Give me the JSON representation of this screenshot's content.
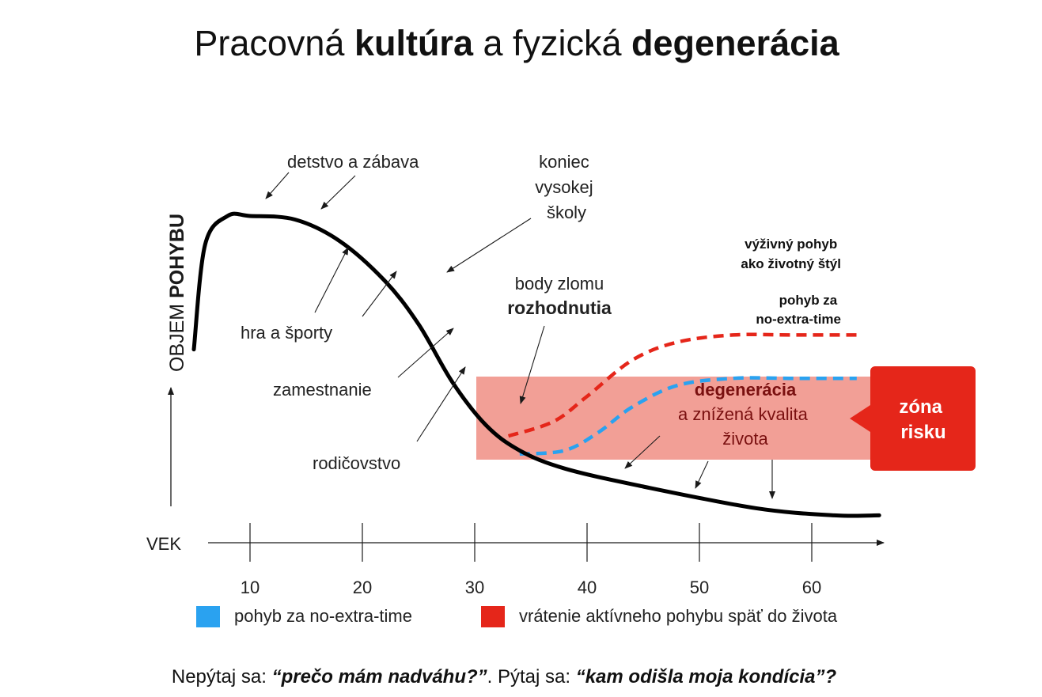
{
  "title": {
    "part1": "Pracovná ",
    "part2": "kultúra",
    "part3": " a fyzická ",
    "part4": "degenerácia"
  },
  "colors": {
    "curve": "#000000",
    "red": "#e5261a",
    "blue": "#2aa2f0",
    "zone": "#f08e84",
    "zone_label_bg": "#e5261a"
  },
  "chart_data": {
    "type": "line",
    "xlabel": "VEK",
    "ylabel_prefix": "OBJEM ",
    "ylabel_bold": "POHYBU",
    "x_ticks": [
      "10",
      "20",
      "30",
      "40",
      "50",
      "60"
    ],
    "xlim": [
      5,
      66
    ],
    "series": [
      {
        "name": "",
        "color": "#000000",
        "x": [
          5,
          6,
          8,
          10,
          14,
          18,
          22,
          25,
          28,
          31,
          34,
          38,
          45,
          55,
          62,
          66
        ],
        "y": [
          0.47,
          0.76,
          0.84,
          0.84,
          0.83,
          0.77,
          0.66,
          0.54,
          0.38,
          0.26,
          0.19,
          0.14,
          0.09,
          0.03,
          0.01,
          0.01
        ]
      },
      {
        "name": "výživný pohyb ako životný štýl",
        "color": "#e5261a",
        "x": [
          33,
          37,
          40,
          44,
          48,
          53,
          58,
          64
        ],
        "y": [
          0.23,
          0.27,
          0.34,
          0.44,
          0.49,
          0.51,
          0.51,
          0.51
        ]
      },
      {
        "name": "pohyb za no-extra-time",
        "color": "#2aa2f0",
        "x": [
          34,
          38,
          41,
          44,
          48,
          53,
          58,
          64
        ],
        "y": [
          0.18,
          0.19,
          0.24,
          0.31,
          0.37,
          0.39,
          0.39,
          0.39
        ]
      }
    ],
    "annotations": {
      "detstvo": "detstvo a zábava",
      "hra": "hra a športy",
      "zamestnanie": "zamestnanie",
      "rodicovstvo": "rodičovstvo",
      "koniec": [
        "koniec",
        "vysokej",
        "školy"
      ],
      "body_zlomu": "body zlomu",
      "rozhodnutia": "rozhodnutia",
      "vyzivny": [
        "výživný pohyb",
        "ako životný štýl"
      ],
      "pohyb_za": [
        "pohyb za",
        "no-extra-time"
      ],
      "degeneracia": "degenerácia",
      "znizena": [
        "a znížená kvalita",
        "života"
      ],
      "zona_risku": [
        "zóna",
        "risku"
      ]
    },
    "legend": [
      {
        "label": "pohyb za no-extra-time",
        "color": "#2aa2f0"
      },
      {
        "label": "vrátenie aktívneho pohybu späť do života",
        "color": "#e5261a"
      }
    ]
  },
  "footer": {
    "p1": "Nepýtaj sa: ",
    "q1": "“prečo mám nadváhu?”",
    "p2": ". Pýtaj sa: ",
    "q2": "“kam odišla moja kondícia”?"
  }
}
